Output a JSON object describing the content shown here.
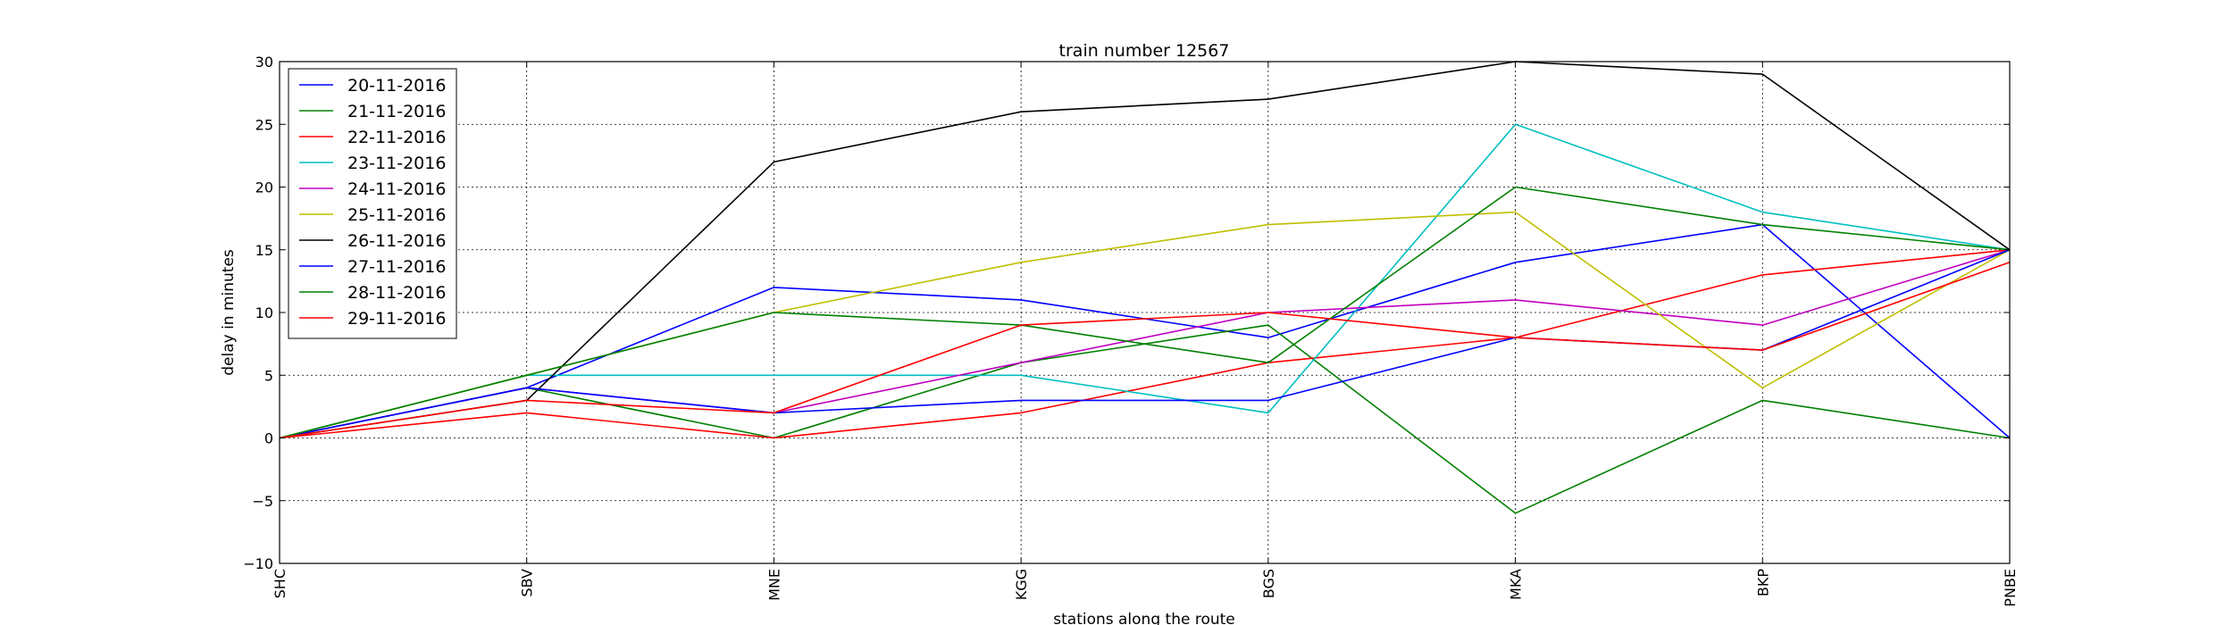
{
  "chart_data": {
    "type": "line",
    "title": "train number 12567",
    "xlabel": "stations along the route",
    "ylabel": "delay in minutes",
    "categories": [
      "SHC",
      "SBV",
      "MNE",
      "KGG",
      "BGS",
      "MKA",
      "BKP",
      "PNBE"
    ],
    "ylim": [
      -10,
      30
    ],
    "yticks": [
      -10,
      -5,
      0,
      5,
      10,
      15,
      20,
      25,
      30
    ],
    "grid": true,
    "legend_position": "top-left",
    "series": [
      {
        "name": "20-11-2016",
        "color": "#0000ff",
        "values": [
          0,
          4,
          12,
          11,
          8,
          14,
          17,
          0
        ]
      },
      {
        "name": "21-11-2016",
        "color": "#008000",
        "values": [
          0,
          4,
          0,
          6,
          9,
          -6,
          3,
          0
        ]
      },
      {
        "name": "22-11-2016",
        "color": "#ff0000",
        "values": [
          0,
          2,
          0,
          2,
          6,
          8,
          13,
          15
        ]
      },
      {
        "name": "23-11-2016",
        "color": "#00bfbf",
        "values": [
          0,
          5,
          5,
          5,
          2,
          25,
          18,
          15
        ]
      },
      {
        "name": "24-11-2016",
        "color": "#bf00bf",
        "values": [
          0,
          4,
          2,
          6,
          10,
          11,
          9,
          15
        ]
      },
      {
        "name": "25-11-2016",
        "color": "#bfbf00",
        "values": [
          0,
          5,
          10,
          14,
          17,
          18,
          4,
          15
        ]
      },
      {
        "name": "26-11-2016",
        "color": "#000000",
        "values": [
          0,
          3,
          22,
          26,
          27,
          30,
          29,
          15
        ]
      },
      {
        "name": "27-11-2016",
        "color": "#0000ff",
        "values": [
          0,
          4,
          2,
          3,
          3,
          8,
          7,
          15
        ]
      },
      {
        "name": "28-11-2016",
        "color": "#008000",
        "values": [
          0,
          5,
          10,
          9,
          6,
          20,
          17,
          15
        ]
      },
      {
        "name": "29-11-2016",
        "color": "#ff0000",
        "values": [
          0,
          3,
          2,
          9,
          10,
          8,
          7,
          14
        ]
      }
    ]
  }
}
